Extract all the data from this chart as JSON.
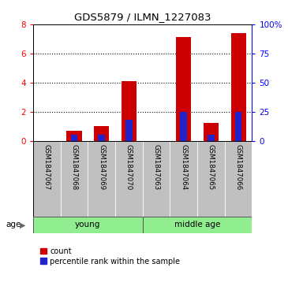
{
  "title": "GDS5879 / ILMN_1227083",
  "samples": [
    "GSM1847067",
    "GSM1847068",
    "GSM1847069",
    "GSM1847070",
    "GSM1847063",
    "GSM1847064",
    "GSM1847065",
    "GSM1847066"
  ],
  "counts": [
    0.0,
    0.7,
    1.0,
    4.1,
    0.0,
    7.1,
    1.2,
    7.4
  ],
  "percentiles": [
    0.0,
    5.0,
    5.0,
    18.0,
    0.0,
    25.0,
    5.0,
    25.0
  ],
  "bar_color_red": "#CC0000",
  "bar_color_blue": "#2222CC",
  "ylim_left": [
    0,
    8
  ],
  "ylim_right": [
    0,
    100
  ],
  "yticks_left": [
    0,
    2,
    4,
    6,
    8
  ],
  "yticks_right": [
    0,
    25,
    50,
    75,
    100
  ],
  "legend_count": "count",
  "legend_pct": "percentile rank within the sample",
  "age_label": "age",
  "group_label_young": "young",
  "group_label_middle": "middle age",
  "green_color": "#90EE90",
  "gray_color": "#C0C0C0",
  "bg_color": "#ffffff"
}
